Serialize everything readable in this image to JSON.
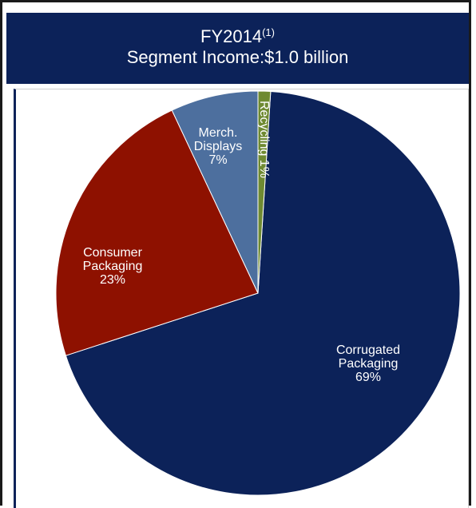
{
  "header": {
    "title": "FY2014",
    "title_superscript": "(1)",
    "subtitle": "Segment Income:$1.0 billion"
  },
  "chart_data": {
    "type": "pie",
    "title": "FY2014(1) Segment Income:$1.0 billion",
    "start_angle_deg": 0,
    "direction": "clockwise",
    "slices": [
      {
        "name": "Corrugated Packaging",
        "label_lines": [
          "Corrugated",
          "Packaging"
        ],
        "value": 69,
        "value_label": "69%",
        "color": "#0c2259"
      },
      {
        "name": "Consumer Packaging",
        "label_lines": [
          "Consumer",
          "Packaging"
        ],
        "value": 23,
        "value_label": "23%",
        "color": "#8e1100"
      },
      {
        "name": "Merch. Displays",
        "label_lines": [
          "Merch.",
          "Displays"
        ],
        "value": 7,
        "value_label": "7%",
        "color": "#4d6f9e"
      },
      {
        "name": "Recycling",
        "label_lines": [
          "Recycling 1%"
        ],
        "value": 1,
        "value_label": "1%",
        "color": "#6f8a32"
      }
    ]
  }
}
